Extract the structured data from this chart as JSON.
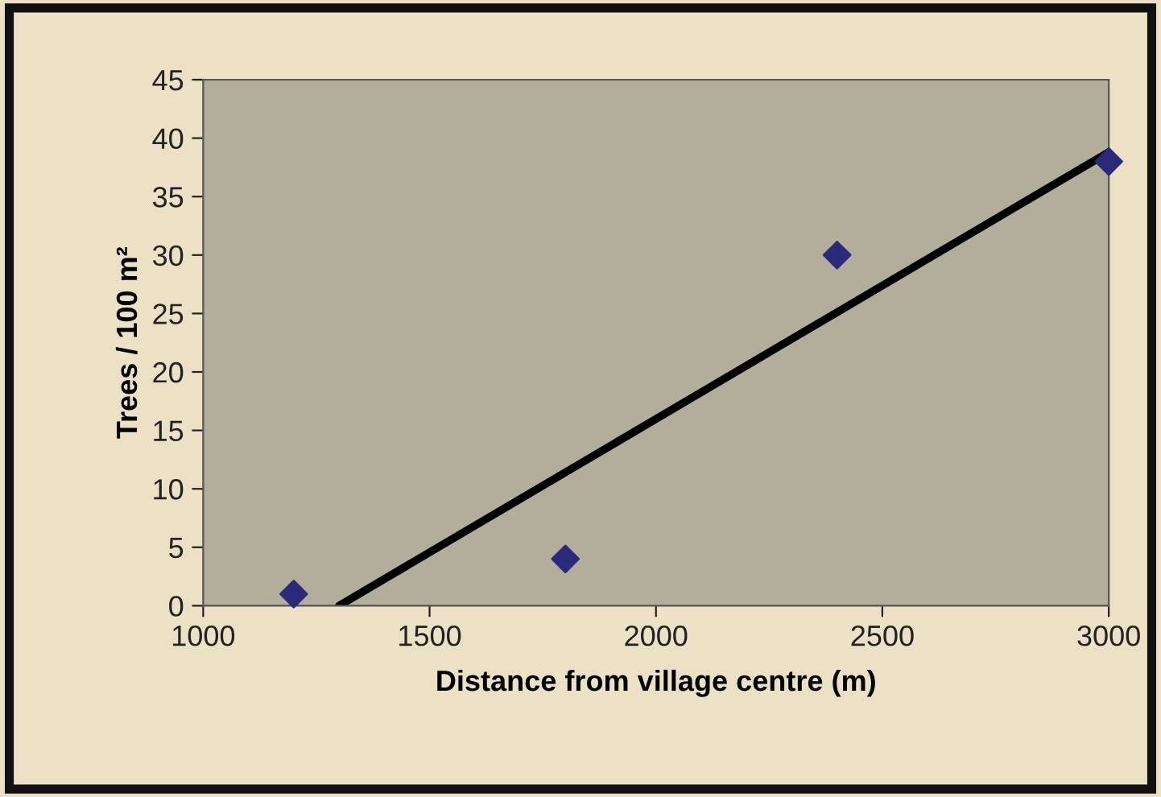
{
  "chart_data": {
    "type": "scatter",
    "xlabel": "Distance from village centre (m)",
    "ylabel": "Trees / 100 m²",
    "xlim": [
      1000,
      3000
    ],
    "xticks": [
      1000,
      1500,
      2000,
      2500,
      3000
    ],
    "ylim": [
      0,
      45
    ],
    "yticks": [
      0,
      5,
      10,
      15,
      20,
      25,
      30,
      35,
      40,
      45
    ],
    "grid": false,
    "legend": false,
    "marker": "diamond",
    "series": [
      {
        "color": "#2b2a7a",
        "x": [
          1200,
          1800,
          2400,
          3000
        ],
        "values": [
          1,
          4,
          30,
          38
        ]
      },
      {
        "type": "line",
        "color": "#000000",
        "x": [
          1300,
          3000
        ],
        "values": [
          0,
          38.8
        ],
        "marker": "none",
        "line_style": "solid"
      }
    ]
  }
}
